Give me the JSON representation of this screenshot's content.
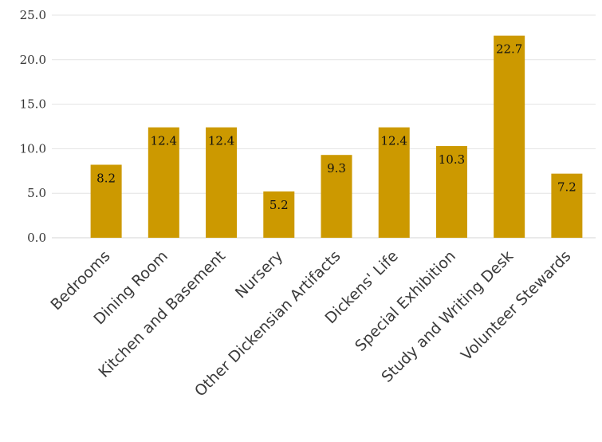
{
  "chart_data": {
    "type": "bar",
    "categories": [
      "Bedrooms",
      "Dining Room",
      "Kitchen and Basement",
      "Nursery",
      "Other Dickensian Artifacts",
      "Dickens' Life",
      "Special Exhibition",
      "Study and Writing Desk",
      "Volunteer Stewards"
    ],
    "values": [
      8.2,
      12.4,
      12.4,
      5.2,
      9.3,
      12.4,
      10.3,
      22.7,
      7.2
    ],
    "data_labels": [
      "8.2",
      "12.4",
      "12.4",
      "5.2",
      "9.3",
      "12.4",
      "10.3",
      "22.7",
      "7.2"
    ],
    "y_ticks": [
      "0.0",
      "5.0",
      "10.0",
      "15.0",
      "20.0",
      "25.0"
    ],
    "ylim": [
      0,
      25
    ],
    "title": "",
    "xlabel": "",
    "ylabel": "",
    "grid": true,
    "legend": "none",
    "bar_color": "#CC9900",
    "grid_color": "#e3e3e3"
  }
}
